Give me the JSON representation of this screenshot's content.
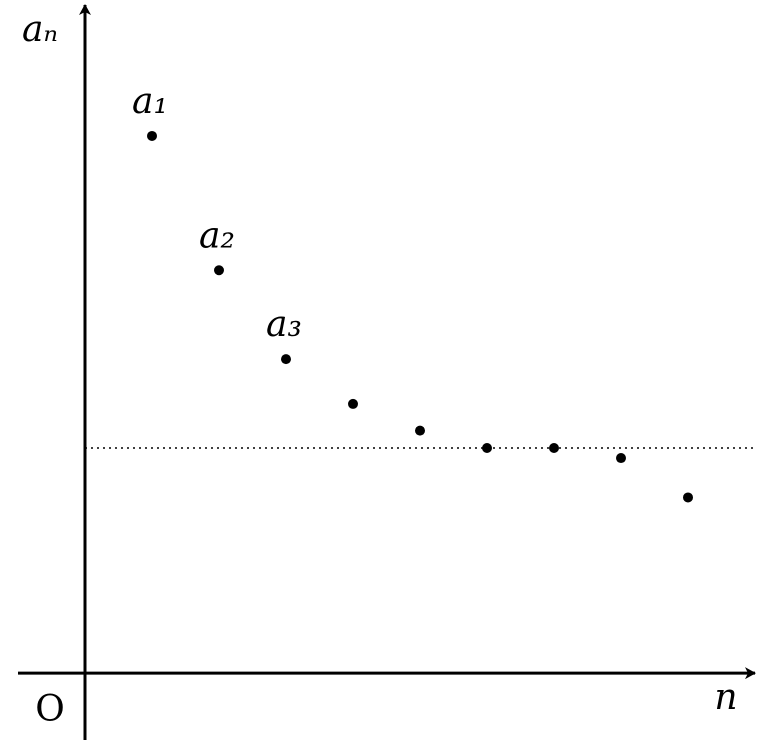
{
  "chart_data": {
    "type": "scatter",
    "y_label": "aₙ",
    "x_label": "n",
    "origin_label": "O",
    "x": [
      1,
      2,
      3,
      4,
      5,
      6,
      7,
      8,
      9
    ],
    "series": [
      {
        "color": "#000000",
        "values": [
          8.04,
          6.03,
          4.7,
          4.03,
          3.63,
          3.37,
          3.37,
          3.22,
          2.63
        ]
      }
    ],
    "point_labels": [
      "a₁",
      "a₂",
      "a₃",
      null,
      null,
      null,
      null,
      null,
      null
    ],
    "reference_line": 3.37,
    "xlim": [
      -1,
      10
    ],
    "ylim": [
      -1,
      10
    ]
  }
}
